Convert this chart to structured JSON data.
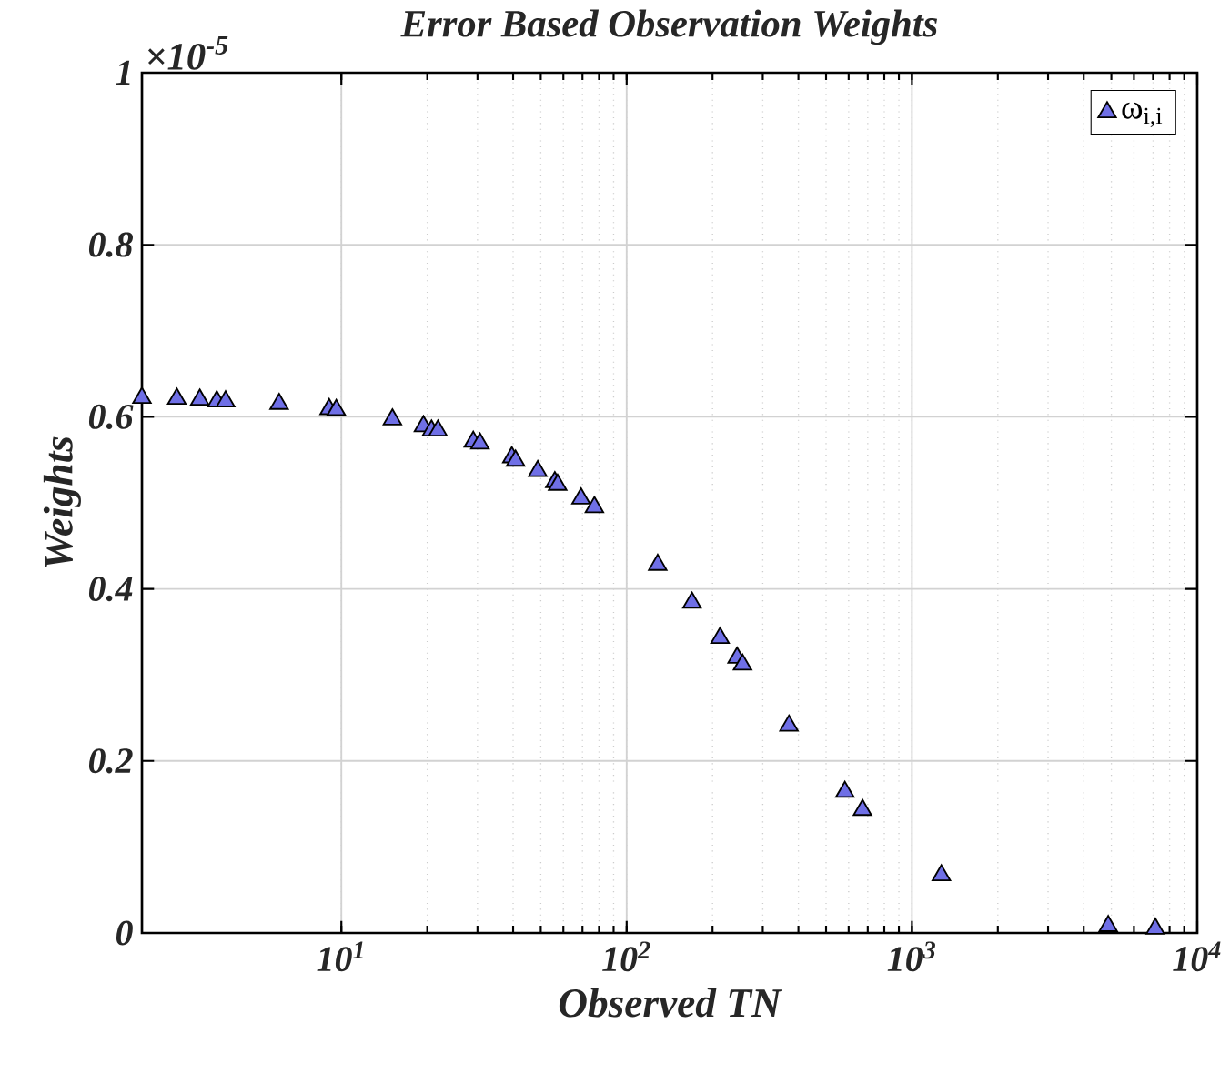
{
  "chart_data": {
    "type": "scatter",
    "title": "Error Based Observation Weights",
    "xlabel": "Observed TN",
    "ylabel": "Weights",
    "annotations": [
      "×10$^{-5}$"
    ],
    "log": "x",
    "grid": true,
    "legend": "top right",
    "marker": "triangle",
    "xlim": [
      2,
      10000
    ],
    "xticks": [
      {
        "value": 10,
        "label": "10$^{1}$"
      },
      {
        "value": 100,
        "label": "10$^{2}$"
      },
      {
        "value": 1000,
        "label": "10$^{3}$"
      },
      {
        "value": 10000,
        "label": "10$^{4}$"
      }
    ],
    "ylim": [
      0,
      1
    ],
    "yticks": [
      0,
      0.2,
      0.4,
      0.6,
      0.8,
      1
    ],
    "series": [
      {
        "name": "ω$_{i,i}$",
        "color": "#6f6fe6",
        "x": [
          2,
          2.65,
          3.19,
          3.66,
          3.93,
          6.05,
          9.06,
          9.6,
          15.1,
          19.4,
          20.7,
          21.8,
          29.0,
          30.6,
          39.6,
          40.8,
          48.8,
          56,
          57.3,
          69.2,
          77.1,
          128.5,
          169.4,
          212.5,
          243.8,
          254.8,
          370.7,
          582,
          671,
          1268,
          4875,
          7130
        ],
        "values": [
          0.622,
          0.621,
          0.62,
          0.618,
          0.618,
          0.615,
          0.609,
          0.608,
          0.597,
          0.589,
          0.584,
          0.584,
          0.571,
          0.569,
          0.553,
          0.549,
          0.537,
          0.524,
          0.521,
          0.505,
          0.495,
          0.428,
          0.384,
          0.343,
          0.32,
          0.312,
          0.241,
          0.164,
          0.143,
          0.067,
          0.008,
          0.005
        ]
      }
    ]
  }
}
